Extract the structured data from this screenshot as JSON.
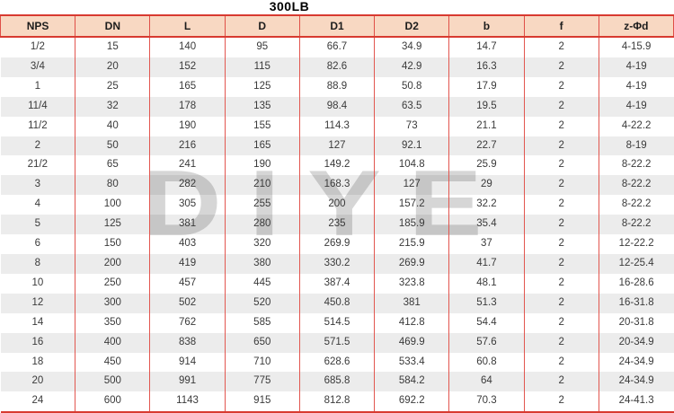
{
  "title": "300LB",
  "watermark_text": "DIYE",
  "colors": {
    "header_bg": "#f8d8c2",
    "border_red": "#e2564f",
    "border_dark_red": "#d83a30",
    "stripe_gray": "#ececec",
    "body_text": "#3a3a3a",
    "watermark_gray": "#d6d6d6"
  },
  "table": {
    "columns": [
      "NPS",
      "DN",
      "L",
      "D",
      "D1",
      "D2",
      "b",
      "f",
      "z-Φd"
    ],
    "rows": [
      [
        "1/2",
        "15",
        "140",
        "95",
        "66.7",
        "34.9",
        "14.7",
        "2",
        "4-15.9"
      ],
      [
        "3/4",
        "20",
        "152",
        "115",
        "82.6",
        "42.9",
        "16.3",
        "2",
        "4-19"
      ],
      [
        "1",
        "25",
        "165",
        "125",
        "88.9",
        "50.8",
        "17.9",
        "2",
        "4-19"
      ],
      [
        "11/4",
        "32",
        "178",
        "135",
        "98.4",
        "63.5",
        "19.5",
        "2",
        "4-19"
      ],
      [
        "11/2",
        "40",
        "190",
        "155",
        "114.3",
        "73",
        "21.1",
        "2",
        "4-22.2"
      ],
      [
        "2",
        "50",
        "216",
        "165",
        "127",
        "92.1",
        "22.7",
        "2",
        "8-19"
      ],
      [
        "21/2",
        "65",
        "241",
        "190",
        "149.2",
        "104.8",
        "25.9",
        "2",
        "8-22.2"
      ],
      [
        "3",
        "80",
        "282",
        "210",
        "168.3",
        "127",
        "29",
        "2",
        "8-22.2"
      ],
      [
        "4",
        "100",
        "305",
        "255",
        "200",
        "157.2",
        "32.2",
        "2",
        "8-22.2"
      ],
      [
        "5",
        "125",
        "381",
        "280",
        "235",
        "185.9",
        "35.4",
        "2",
        "8-22.2"
      ],
      [
        "6",
        "150",
        "403",
        "320",
        "269.9",
        "215.9",
        "37",
        "2",
        "12-22.2"
      ],
      [
        "8",
        "200",
        "419",
        "380",
        "330.2",
        "269.9",
        "41.7",
        "2",
        "12-25.4"
      ],
      [
        "10",
        "250",
        "457",
        "445",
        "387.4",
        "323.8",
        "48.1",
        "2",
        "16-28.6"
      ],
      [
        "12",
        "300",
        "502",
        "520",
        "450.8",
        "381",
        "51.3",
        "2",
        "16-31.8"
      ],
      [
        "14",
        "350",
        "762",
        "585",
        "514.5",
        "412.8",
        "54.4",
        "2",
        "20-31.8"
      ],
      [
        "16",
        "400",
        "838",
        "650",
        "571.5",
        "469.9",
        "57.6",
        "2",
        "20-34.9"
      ],
      [
        "18",
        "450",
        "914",
        "710",
        "628.6",
        "533.4",
        "60.8",
        "2",
        "24-34.9"
      ],
      [
        "20",
        "500",
        "991",
        "775",
        "685.8",
        "584.2",
        "64",
        "2",
        "24-34.9"
      ],
      [
        "24",
        "600",
        "1143",
        "915",
        "812.8",
        "692.2",
        "70.3",
        "2",
        "24-41.3"
      ]
    ]
  }
}
